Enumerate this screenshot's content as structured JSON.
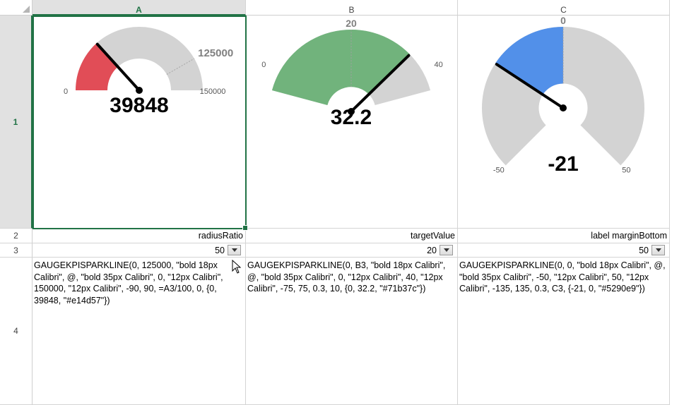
{
  "columns": [
    {
      "label": "A",
      "selected": true
    },
    {
      "label": "B",
      "selected": false
    },
    {
      "label": "C",
      "selected": false
    }
  ],
  "rows": [
    {
      "label": "1",
      "selected": true
    },
    {
      "label": "2",
      "selected": false
    },
    {
      "label": "3",
      "selected": false
    },
    {
      "label": "4",
      "selected": false
    }
  ],
  "row2": {
    "a": "radiusRatio",
    "b": "targetValue",
    "c": "label marginBottom"
  },
  "row3": {
    "a": "50",
    "b": "20",
    "c": "50"
  },
  "row4": {
    "a": "GAUGEKPISPARKLINE(0, 125000, \"bold 18px Calibri\", @, \"bold 35px Calibri\", 0, \"12px Calibri\", 150000, \"12px Calibri\", -90, 90, =A3/100, 0, {0, 39848, \"#e14d57\"})",
    "b": "GAUGEKPISPARKLINE(0, B3, \"bold 18px Calibri\", @, \"bold 35px Calibri\", 0, \"12px Calibri\", 40, \"12px Calibri\", -75, 75, 0.3, 10, {0, 32.2, \"#71b37c\"})",
    "c": "GAUGEKPISPARKLINE(0, 0, \"bold 18px Calibri\", @, \"bold 35px Calibri\", -50, \"12px Calibri\", 50, \"12px Calibri\", -135, 135, 0.3, C3, {-21, 0, \"#5290e9\"})"
  },
  "gauges": {
    "a": {
      "min": 0,
      "max": 150000,
      "target": 125000,
      "value": 39848,
      "start_angle": -90,
      "end_angle": 90,
      "radius_ratio": 0.5,
      "color": "#e14d57",
      "track_color": "#d3d3d3",
      "value_label": "39848",
      "min_label": "0",
      "max_label": "150000",
      "target_label": "125000"
    },
    "b": {
      "min": 0,
      "max": 40,
      "target": 20,
      "value": 32.2,
      "start_angle": -75,
      "end_angle": 75,
      "radius_ratio": 0.3,
      "color": "#71b37c",
      "track_color": "#d3d3d3",
      "value_label": "32.2",
      "min_label": "0",
      "max_label": "40",
      "target_label": "20"
    },
    "c": {
      "min": -50,
      "max": 50,
      "target": 0,
      "value": -21,
      "start_angle": -135,
      "end_angle": 135,
      "radius_ratio": 0.3,
      "color": "#5290e9",
      "track_color": "#d3d3d3",
      "value_label": "-21",
      "min_label": "-50",
      "max_label": "50",
      "target_label": "0"
    }
  }
}
